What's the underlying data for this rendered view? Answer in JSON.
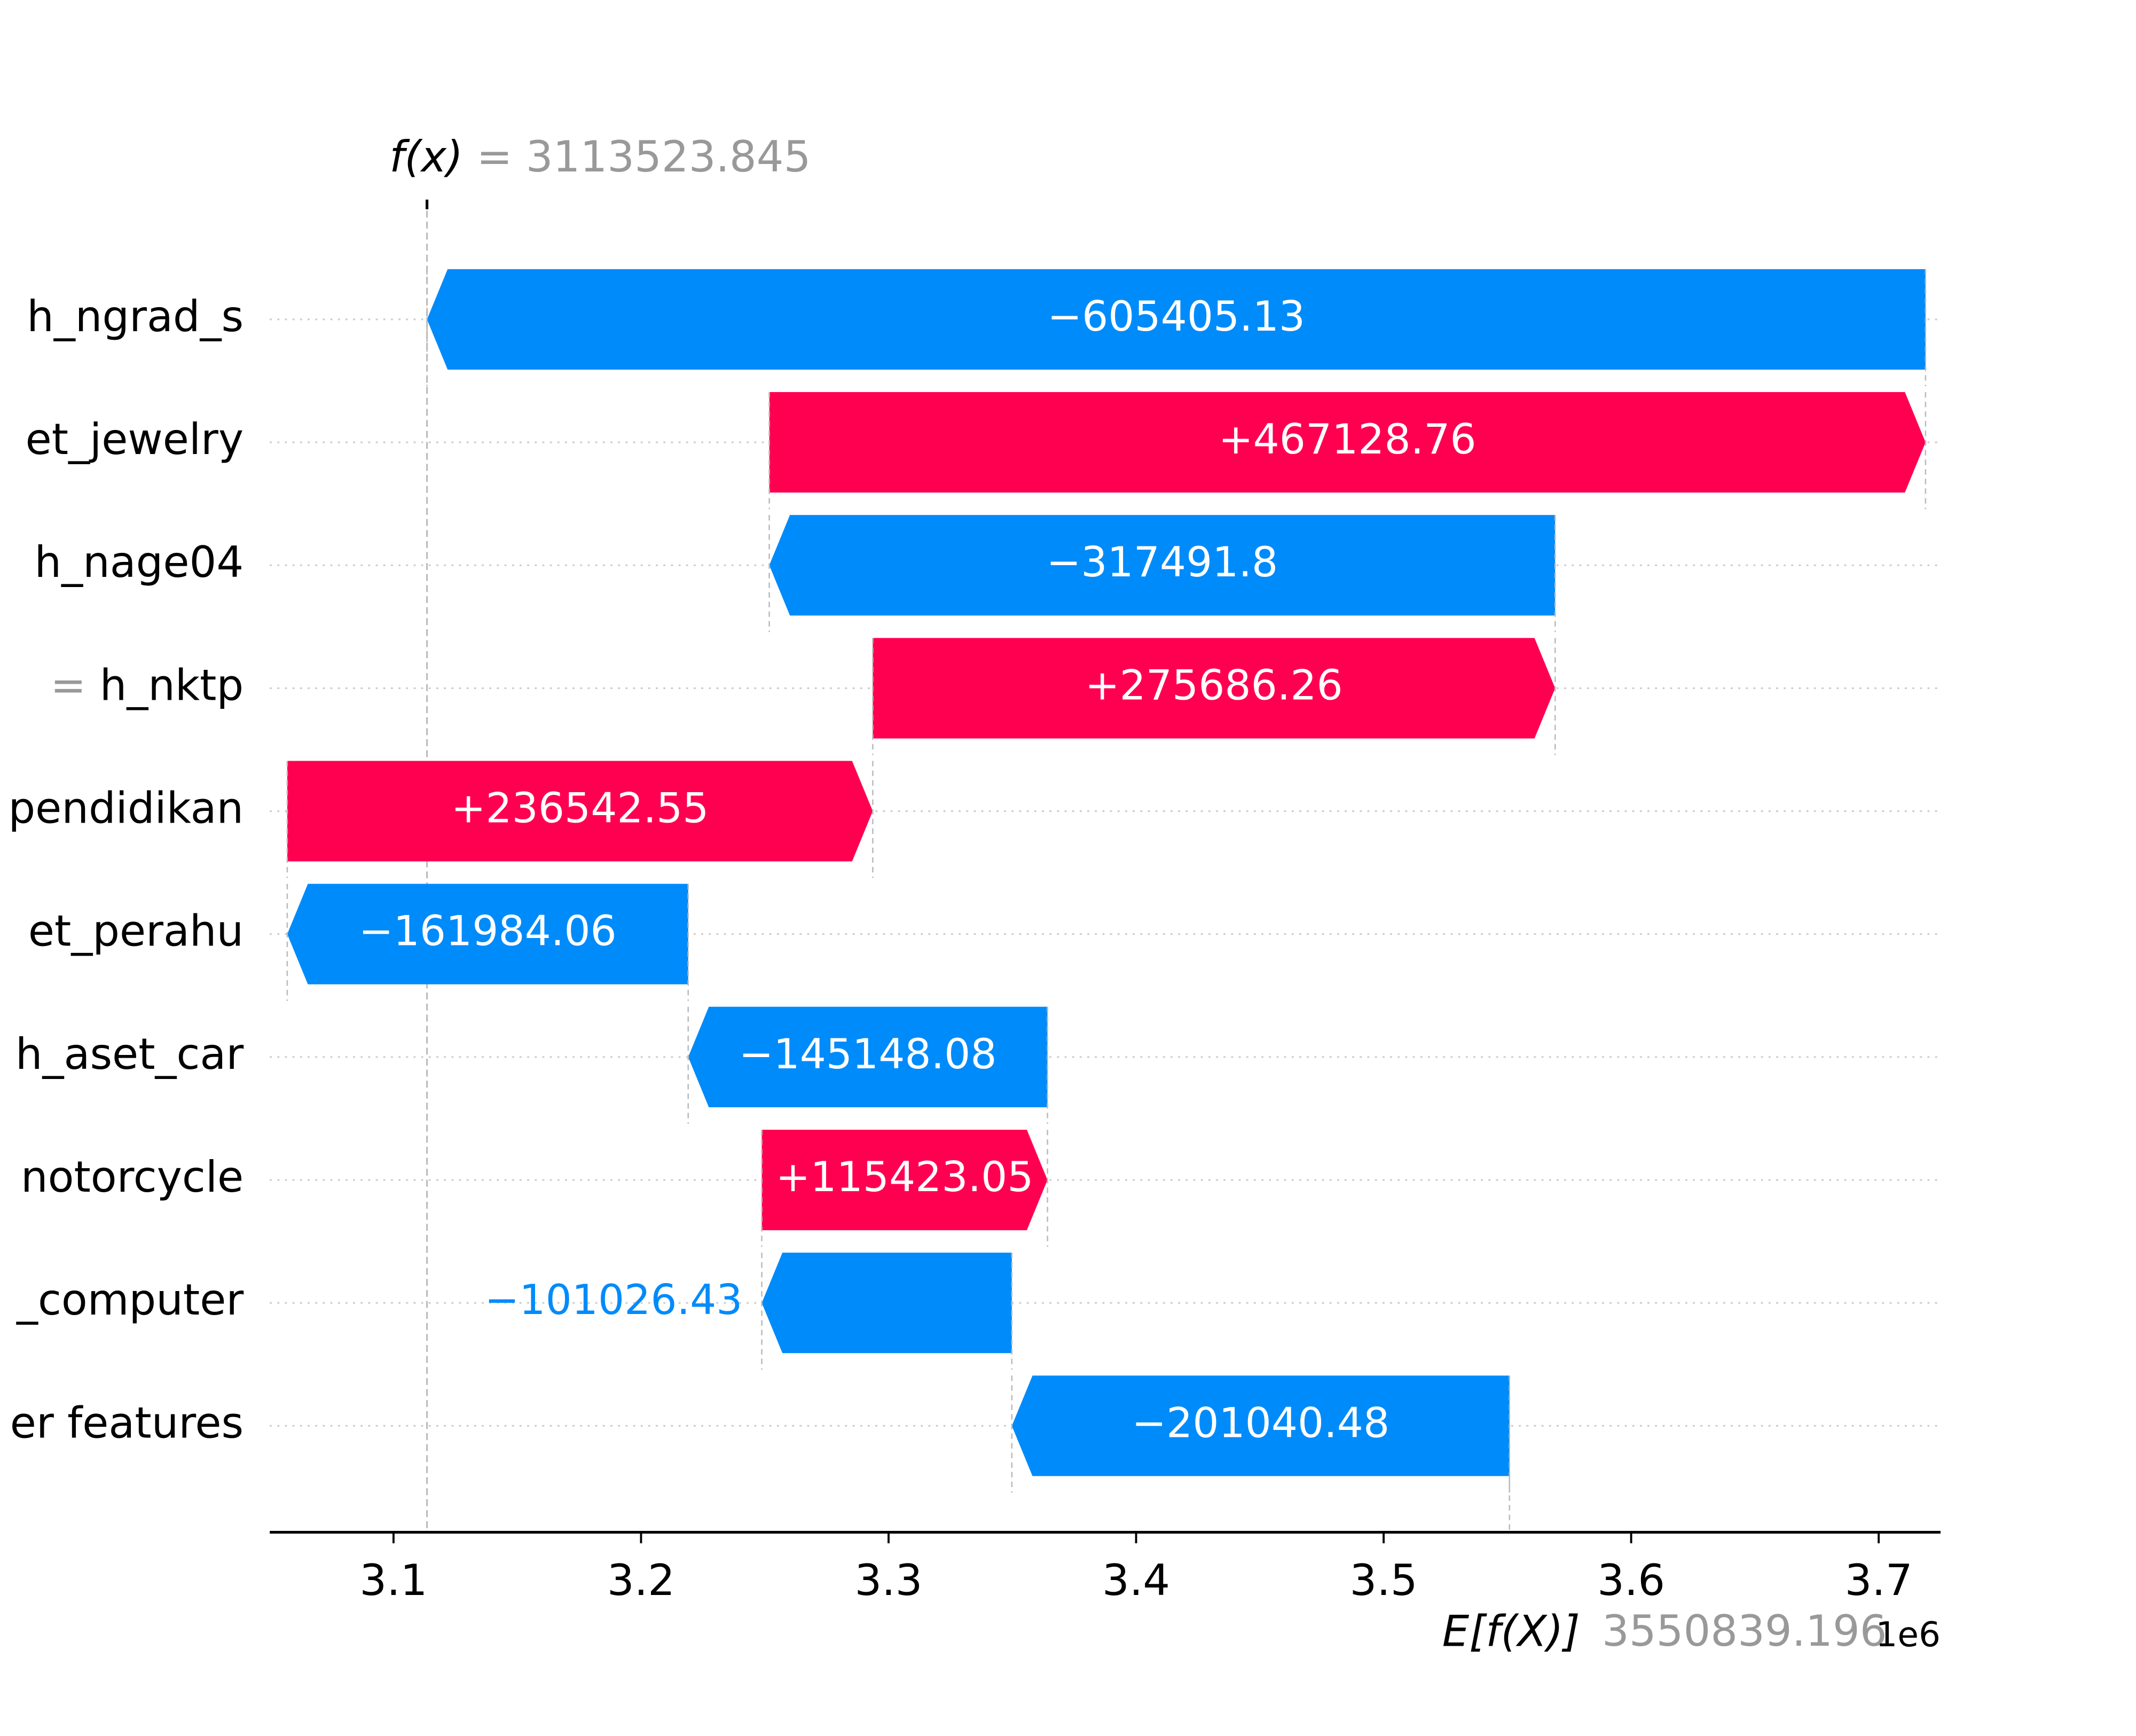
{
  "chart_data": {
    "type": "waterfall",
    "fx_label": "f(x)",
    "equals_sign": "=",
    "fx_value": 3113523.845,
    "base_label": "E[f(X)]",
    "base_value": 3550839.196,
    "categories": [
      "h_ngrad_s",
      "et_jewelry",
      "h_nage04",
      "h_nktp",
      "pendidikan",
      "et_perahu",
      "h_aset_car",
      "notorcycle",
      "_computer",
      "er features"
    ],
    "category_prefixes": [
      null,
      null,
      null,
      "=",
      null,
      null,
      null,
      null,
      null,
      null
    ],
    "values": [
      -605405.13,
      467128.76,
      -317491.8,
      275686.26,
      236542.55,
      -161984.06,
      -145148.08,
      115423.05,
      -101026.43,
      -201040.48
    ],
    "value_labels": [
      "−605405.13",
      "+467128.76",
      "−317491.8",
      "+275686.26",
      "+236542.55",
      "−161984.06",
      "−145148.08",
      "+115423.05",
      "−101026.43",
      "−201040.48"
    ],
    "positive_color": "#ff0051",
    "negative_color": "#008bfb",
    "xlim": [
      3050000,
      3725000
    ],
    "xticks": [
      {
        "value": 3100000,
        "label": "3.1"
      },
      {
        "value": 3200000,
        "label": "3.2"
      },
      {
        "value": 3300000,
        "label": "3.3"
      },
      {
        "value": 3400000,
        "label": "3.4"
      },
      {
        "value": 3500000,
        "label": "3.5"
      },
      {
        "value": 3600000,
        "label": "3.6"
      },
      {
        "value": 3700000,
        "label": "3.7"
      }
    ],
    "x_offset_label": "1e6",
    "grid": true
  }
}
